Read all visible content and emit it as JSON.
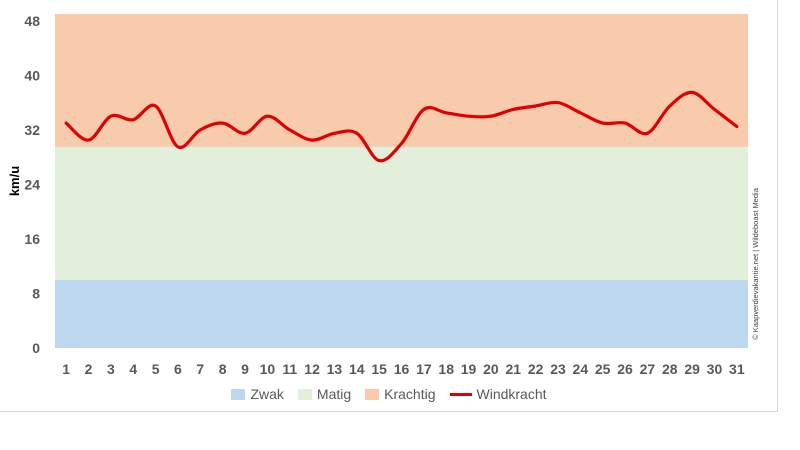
{
  "chart_data": {
    "type": "line",
    "title": "",
    "xlabel": "",
    "ylabel": "km/u",
    "x": [
      1,
      2,
      3,
      4,
      5,
      6,
      7,
      8,
      9,
      10,
      11,
      12,
      13,
      14,
      15,
      16,
      17,
      18,
      19,
      20,
      21,
      22,
      23,
      24,
      25,
      26,
      27,
      28,
      29,
      30,
      31
    ],
    "xlim": [
      0.5,
      31.5
    ],
    "ylim": [
      0,
      49
    ],
    "yticks": [
      0,
      8,
      16,
      24,
      32,
      40,
      48
    ],
    "bands": [
      {
        "name": "Zwak",
        "from": 0,
        "to": 10,
        "color": "#bdd7ee"
      },
      {
        "name": "Matig",
        "from": 10,
        "to": 29.5,
        "color": "#e2efda"
      },
      {
        "name": "Krachtig",
        "from": 29.5,
        "to": 49,
        "color": "#f8cbad"
      }
    ],
    "series": [
      {
        "name": "Windkracht",
        "color": "#e00000",
        "values": [
          33,
          30.5,
          34,
          33.5,
          35.5,
          29.5,
          32,
          33,
          31.5,
          34,
          32,
          30.5,
          31.5,
          31.5,
          27.5,
          30,
          35,
          34.5,
          34,
          34,
          35,
          35.5,
          36,
          34.5,
          33,
          33,
          31.5,
          35.5,
          37.5,
          35,
          32.5
        ]
      }
    ],
    "grid": false,
    "legend_position": "bottom",
    "credit": "© Kaapverdievakantie.net | Wildeboast Media"
  }
}
